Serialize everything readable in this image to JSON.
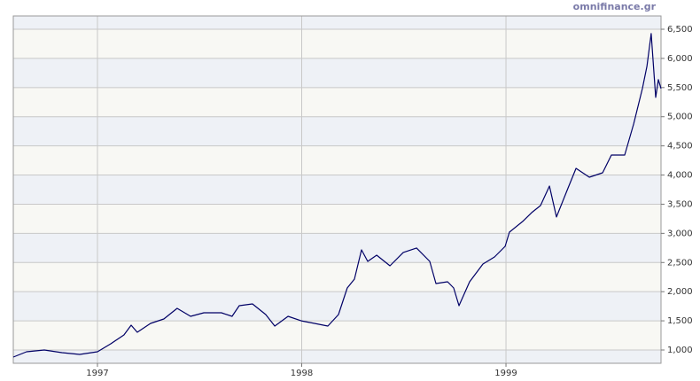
{
  "chart_data": {
    "type": "line",
    "watermark": "omnifinance.gr",
    "x": [
      1996.588,
      1996.653,
      1996.74,
      1996.826,
      1996.913,
      1997.0,
      1997.065,
      1997.13,
      1997.165,
      1997.195,
      1997.26,
      1997.325,
      1997.39,
      1997.456,
      1997.521,
      1997.607,
      1997.659,
      1997.694,
      1997.759,
      1997.824,
      1997.868,
      1997.933,
      1997.998,
      1998.063,
      1998.128,
      1998.18,
      1998.223,
      1998.258,
      1998.293,
      1998.323,
      1998.367,
      1998.432,
      1998.497,
      1998.562,
      1998.627,
      1998.657,
      1998.714,
      1998.744,
      1998.77,
      1998.822,
      1998.887,
      1998.944,
      1998.996,
      1999.017,
      1999.082,
      1999.126,
      1999.169,
      1999.213,
      1999.247,
      1999.299,
      1999.343,
      1999.408,
      1999.473,
      1999.516,
      1999.581,
      1999.625,
      1999.668,
      1999.69,
      1999.711,
      1999.733,
      1999.746,
      1999.759
    ],
    "values": [
      878,
      970,
      1000,
      955,
      924,
      970,
      1106,
      1258,
      1425,
      1304,
      1456,
      1532,
      1714,
      1578,
      1638,
      1638,
      1578,
      1760,
      1790,
      1608,
      1410,
      1578,
      1500,
      1456,
      1410,
      1608,
      2064,
      2216,
      2717,
      2520,
      2626,
      2444,
      2672,
      2748,
      2520,
      2140,
      2170,
      2064,
      1760,
      2170,
      2474,
      2596,
      2778,
      3021,
      3204,
      3356,
      3477,
      3811,
      3280,
      3736,
      4115,
      3963,
      4039,
      4343,
      4343,
      4875,
      5483,
      5863,
      6426,
      5331,
      5635,
      5483
    ],
    "color": "#000066",
    "xlim": [
      1996.588,
      1999.759
    ],
    "xticks": [
      1997,
      1998,
      1999
    ],
    "ylim": [
      772,
      6728
    ],
    "yticks": [
      {
        "value": 1000,
        "label": "1,000"
      },
      {
        "value": 1500,
        "label": "1,500"
      },
      {
        "value": 2000,
        "label": "2,000"
      },
      {
        "value": 2500,
        "label": "2,500"
      },
      {
        "value": 3000,
        "label": "3,000"
      },
      {
        "value": 3500,
        "label": "3,500"
      },
      {
        "value": 4000,
        "label": "4,000"
      },
      {
        "value": 4500,
        "label": "4,500"
      },
      {
        "value": 5000,
        "label": "5,000"
      },
      {
        "value": 5500,
        "label": "5,500"
      },
      {
        "value": 6000,
        "label": "6,000"
      },
      {
        "value": 6500,
        "label": "6,500"
      }
    ],
    "grid": true
  }
}
